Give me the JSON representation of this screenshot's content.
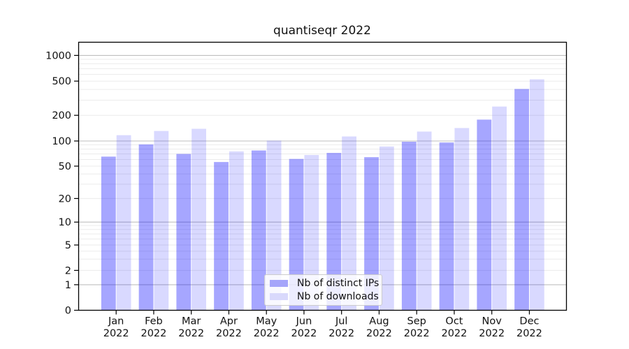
{
  "title": "quantiseqr 2022",
  "chart_data": {
    "type": "bar",
    "title": "quantiseqr 2022",
    "categories": [
      "Jan 2022",
      "Feb 2022",
      "Mar 2022",
      "Apr 2022",
      "May 2022",
      "Jun 2022",
      "Jul 2022",
      "Aug 2022",
      "Sep 2022",
      "Oct 2022",
      "Nov 2022",
      "Dec 2022"
    ],
    "series": [
      {
        "name": "Nb of distinct IPs",
        "values": [
          65,
          91,
          70,
          56,
          77,
          61,
          72,
          64,
          98,
          96,
          178,
          405
        ],
        "color": "#0000ff",
        "opacity": 0.35
      },
      {
        "name": "Nb of downloads",
        "values": [
          117,
          131,
          139,
          75,
          101,
          68,
          113,
          86,
          129,
          142,
          253,
          525
        ],
        "color": "#0000ff",
        "opacity": 0.15
      }
    ],
    "yscale": "symlog",
    "y_ticks": [
      0,
      1,
      2,
      5,
      10,
      20,
      50,
      100,
      200,
      500,
      1000
    ],
    "ylim": [
      0,
      1400
    ],
    "xlabel": "",
    "ylabel": "",
    "grid": true,
    "legend_position": "lower center"
  },
  "legend": {
    "items": [
      {
        "label": "Nb of distinct IPs",
        "swatch_color": "#a5a5fa"
      },
      {
        "label": "Nb of downloads",
        "swatch_color": "#d9d9fc"
      }
    ]
  },
  "colors": {
    "background": "#ffffff",
    "bar_base": "#0000ff",
    "bar_ips_composite": "#a5a5fa",
    "bar_downloads_composite": "#d9d9fc",
    "grid_minor": "rgba(0,0,0,0.08)",
    "grid_major": "rgba(0,0,0,0.25)",
    "spine": "#000000",
    "text": "#111111",
    "legend_border": "#cccccc"
  }
}
